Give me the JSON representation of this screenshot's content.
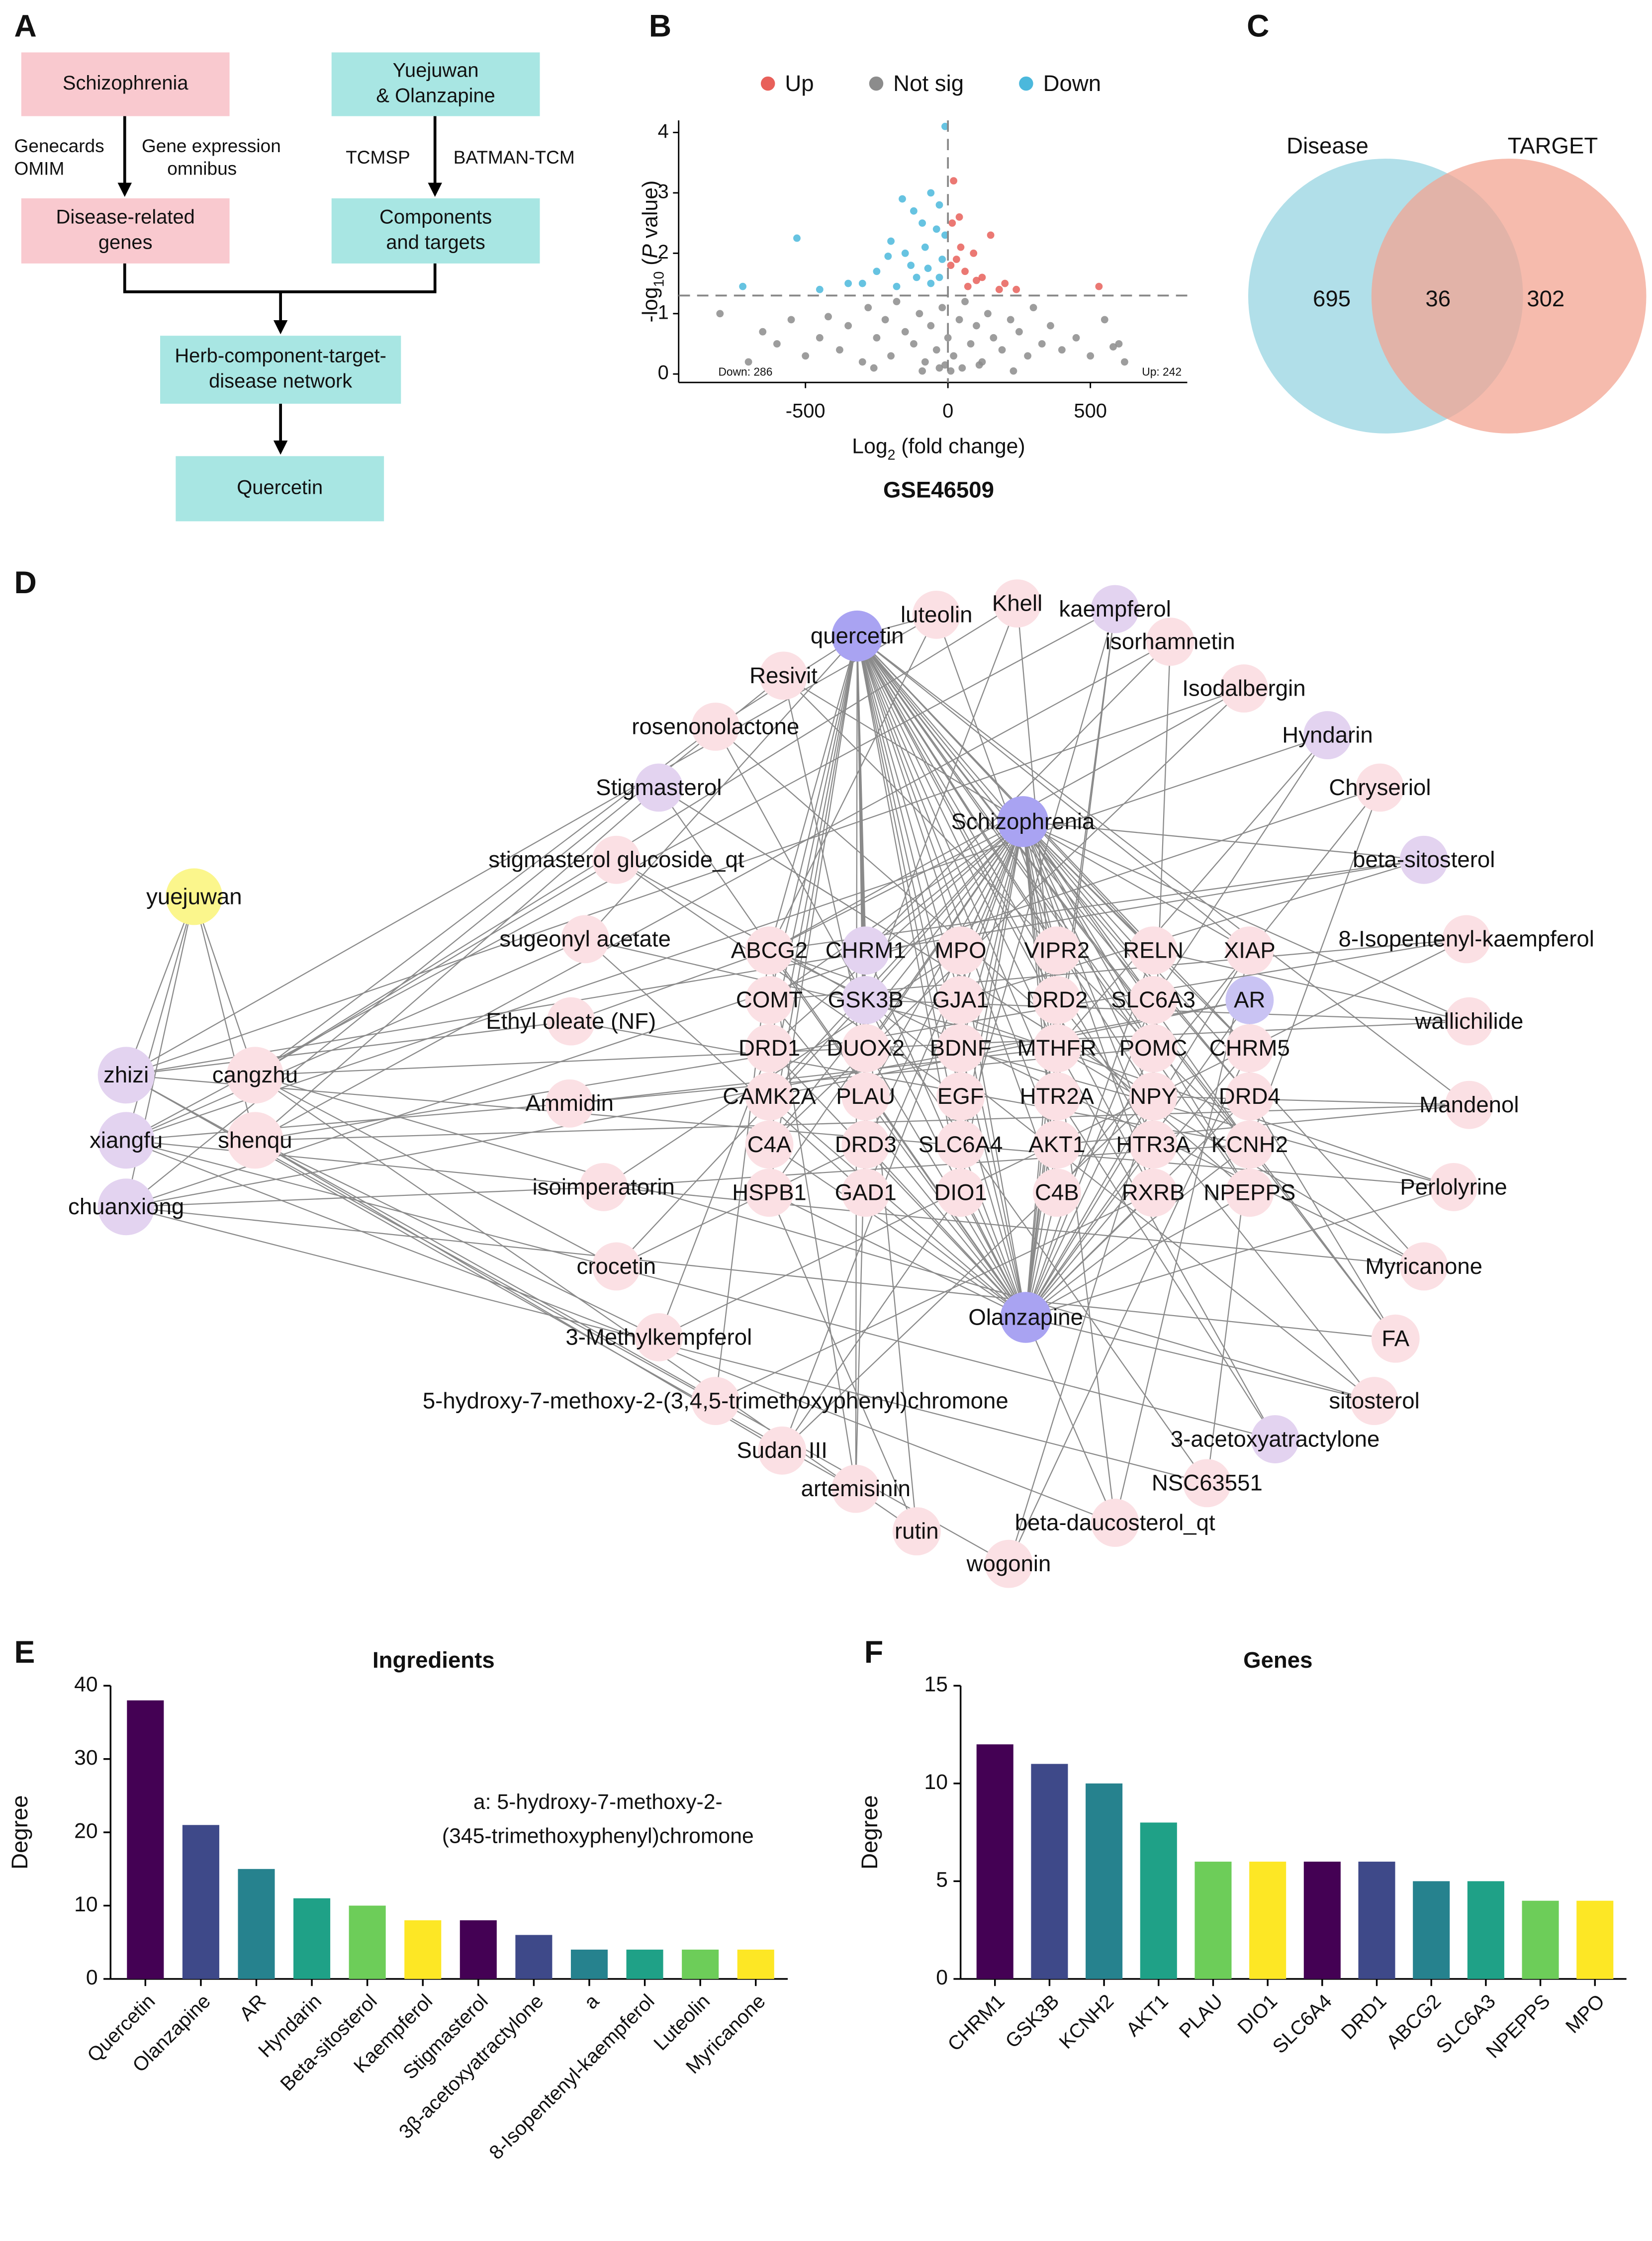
{
  "panel_labels": [
    "A",
    "B",
    "C",
    "D",
    "E",
    "F"
  ],
  "flowchart": {
    "nodes": [
      {
        "lines": [
          "Schizophrenia"
        ],
        "color": "#f9c9cf"
      },
      {
        "lines": [
          "Yuejuwan",
          "& Olanzapine"
        ],
        "color": "#a8e6e3"
      },
      {
        "lines": [
          "Disease-related",
          "genes"
        ],
        "color": "#f9c9cf"
      },
      {
        "lines": [
          "Components",
          "and targets"
        ],
        "color": "#a8e6e3"
      },
      {
        "lines": [
          "Herb-component-target-",
          "disease network"
        ],
        "color": "#a8e6e3"
      },
      {
        "lines": [
          "Quercetin"
        ],
        "color": "#a8e6e3"
      }
    ],
    "edge_labels": [
      "Genecards",
      "OMIM",
      "Gene expression",
      "omnibus",
      "TCMSP",
      "BATMAN-TCM"
    ]
  },
  "network": {
    "nodes": [
      {
        "label": "quercetin",
        "color": "#a9a3f2"
      },
      {
        "label": "luteolin",
        "color": "#fbe0e4"
      },
      {
        "label": "Khell",
        "color": "#fbe0e4"
      },
      {
        "label": "kaempferol",
        "color": "#e3d3f0"
      },
      {
        "label": "isorhamnetin",
        "color": "#fbe0e4"
      },
      {
        "label": "Resivit",
        "color": "#fbe0e4"
      },
      {
        "label": "Isodalbergin",
        "color": "#fbe0e4"
      },
      {
        "label": "rosenonolactone",
        "color": "#fbe0e4"
      },
      {
        "label": "Hyndarin",
        "color": "#e3d3f0"
      },
      {
        "label": "Stigmasterol",
        "color": "#e3d3f0"
      },
      {
        "label": "Chryseriol",
        "color": "#fbe0e4"
      },
      {
        "label": "Schizophrenia",
        "color": "#a9a3f2"
      },
      {
        "label": "beta-sitosterol",
        "color": "#e3d3f0"
      },
      {
        "label": "yuejuwan",
        "color": "#fbf68c"
      },
      {
        "label": "stigmasterol glucoside_qt",
        "color": "#fbe0e4"
      },
      {
        "label": "sugeonyl acetate",
        "color": "#fbe0e4"
      },
      {
        "label": "8-Isopentenyl-kaempferol",
        "color": "#fbe0e4"
      },
      {
        "label": "ABCG2",
        "color": "#fbe0e4"
      },
      {
        "label": "CHRM1",
        "color": "#e3d3f0"
      },
      {
        "label": "MPO",
        "color": "#fbe0e4"
      },
      {
        "label": "VIPR2",
        "color": "#fbe0e4"
      },
      {
        "label": "RELN",
        "color": "#fbe0e4"
      },
      {
        "label": "XIAP",
        "color": "#fbe0e4"
      },
      {
        "label": "COMT",
        "color": "#fbe0e4"
      },
      {
        "label": "GSK3B",
        "color": "#e3d3f0"
      },
      {
        "label": "GJA1",
        "color": "#fbe0e4"
      },
      {
        "label": "DRD2",
        "color": "#fbe0e4"
      },
      {
        "label": "SLC6A3",
        "color": "#fbe0e4"
      },
      {
        "label": "AR",
        "color": "#c9c3f3"
      },
      {
        "label": "Ethyl oleate (NF)",
        "color": "#fbe0e4"
      },
      {
        "label": "wallichilide",
        "color": "#fbe0e4"
      },
      {
        "label": "DRD1",
        "color": "#fbe0e4"
      },
      {
        "label": "DUOX2",
        "color": "#fbe0e4"
      },
      {
        "label": "BDNF",
        "color": "#fbe0e4"
      },
      {
        "label": "MTHFR",
        "color": "#fbe0e4"
      },
      {
        "label": "POMC",
        "color": "#fbe0e4"
      },
      {
        "label": "CHRM5",
        "color": "#fbe0e4"
      },
      {
        "label": "zhizi",
        "color": "#e3d3f0"
      },
      {
        "label": "cangzhu",
        "color": "#fbe0e4"
      },
      {
        "label": "Ammidin",
        "color": "#fbe0e4"
      },
      {
        "label": "CAMK2A",
        "color": "#fbe0e4"
      },
      {
        "label": "PLAU",
        "color": "#fbe0e4"
      },
      {
        "label": "EGF",
        "color": "#fbe0e4"
      },
      {
        "label": "HTR2A",
        "color": "#fbe0e4"
      },
      {
        "label": "NPY",
        "color": "#fbe0e4"
      },
      {
        "label": "DRD4",
        "color": "#fbe0e4"
      },
      {
        "label": "Mandenol",
        "color": "#fbe0e4"
      },
      {
        "label": "xiangfu",
        "color": "#e3d3f0"
      },
      {
        "label": "shenqu",
        "color": "#fbe0e4"
      },
      {
        "label": "C4A",
        "color": "#fbe0e4"
      },
      {
        "label": "DRD3",
        "color": "#fbe0e4"
      },
      {
        "label": "SLC6A4",
        "color": "#fbe0e4"
      },
      {
        "label": "AKT1",
        "color": "#fbe0e4"
      },
      {
        "label": "HTR3A",
        "color": "#fbe0e4"
      },
      {
        "label": "KCNH2",
        "color": "#fbe0e4"
      },
      {
        "label": "isoimperatorin",
        "color": "#fbe0e4"
      },
      {
        "label": "HSPB1",
        "color": "#fbe0e4"
      },
      {
        "label": "GAD1",
        "color": "#fbe0e4"
      },
      {
        "label": "DIO1",
        "color": "#fbe0e4"
      },
      {
        "label": "C4B",
        "color": "#fbe0e4"
      },
      {
        "label": "RXRB",
        "color": "#fbe0e4"
      },
      {
        "label": "NPEPPS",
        "color": "#fbe0e4"
      },
      {
        "label": "Perlolyrine",
        "color": "#fbe0e4"
      },
      {
        "label": "chuanxiong",
        "color": "#e3d3f0"
      },
      {
        "label": "crocetin",
        "color": "#fbe0e4"
      },
      {
        "label": "Myricanone",
        "color": "#fbe0e4"
      },
      {
        "label": "Olanzapine",
        "color": "#a9a3f2"
      },
      {
        "label": "3-Methylkempferol",
        "color": "#fbe0e4"
      },
      {
        "label": "FA",
        "color": "#fbe0e4"
      },
      {
        "label": "5-hydroxy-7-methoxy-2-(3,4,5-trimethoxyphenyl)chromone",
        "color": "#fbe0e4"
      },
      {
        "label": "sitosterol",
        "color": "#fbe0e4"
      },
      {
        "label": "3-acetoxyatractylone",
        "color": "#e3d3f0"
      },
      {
        "label": "Sudan III",
        "color": "#fbe0e4"
      },
      {
        "label": "NSC63551",
        "color": "#fbe0e4"
      },
      {
        "label": "artemisinin",
        "color": "#fbe0e4"
      },
      {
        "label": "rutin",
        "color": "#fbe0e4"
      },
      {
        "label": "beta-daucosterol_qt",
        "color": "#fbe0e4"
      },
      {
        "label": "wogonin",
        "color": "#fbe0e4"
      }
    ]
  },
  "chart_data": [
    {
      "type": "scatter",
      "subtitle": "GSE46509",
      "xlabel": [
        "Log",
        "2",
        " (fold change)"
      ],
      "ylabel": [
        "-log",
        "10",
        " (",
        "P",
        " value)"
      ],
      "xlim": [
        -945,
        840
      ],
      "ylim": [
        -0.14,
        4.2
      ],
      "xticks": [
        -500,
        0,
        500
      ],
      "yticks": [
        0,
        1,
        2,
        3,
        4
      ],
      "threshold": 1.3,
      "vline": 0,
      "annotations": [
        "Down: 286",
        "Up: 242"
      ],
      "series": [
        {
          "name": "Up",
          "color": "#e8605a",
          "x": [
            20,
            40,
            150,
            90,
            30,
            60,
            120,
            200,
            10,
            70,
            530,
            180,
            45,
            100,
            15,
            240
          ],
          "values": [
            3.2,
            2.6,
            2.3,
            2.0,
            1.9,
            1.7,
            1.6,
            1.5,
            1.8,
            1.45,
            1.45,
            1.4,
            2.1,
            1.55,
            2.5,
            1.4
          ]
        },
        {
          "name": "Not sig",
          "color": "#8c8c8c",
          "x": [
            -800,
            -650,
            -600,
            -550,
            -500,
            -450,
            -420,
            -380,
            -350,
            -300,
            -280,
            -250,
            -220,
            -200,
            -180,
            -150,
            -120,
            -100,
            -80,
            -60,
            -40,
            -20,
            0,
            20,
            40,
            60,
            80,
            100,
            120,
            140,
            160,
            190,
            220,
            250,
            280,
            300,
            330,
            360,
            400,
            450,
            500,
            550,
            600,
            620,
            -700,
            -30,
            10,
            -10,
            50,
            -90,
            110,
            -260,
            230,
            580
          ],
          "values": [
            1.0,
            0.7,
            0.5,
            0.9,
            0.3,
            0.6,
            0.95,
            0.4,
            0.8,
            0.2,
            1.1,
            0.6,
            0.9,
            0.3,
            1.2,
            0.7,
            0.5,
            1.0,
            0.2,
            0.8,
            0.4,
            1.1,
            0.6,
            0.3,
            0.9,
            1.2,
            0.5,
            0.8,
            0.2,
            1.0,
            0.6,
            0.4,
            0.9,
            0.7,
            0.3,
            1.1,
            0.5,
            0.8,
            0.4,
            0.6,
            0.3,
            0.9,
            0.5,
            0.2,
            0.2,
            0.1,
            0.05,
            0.15,
            0.1,
            0.05,
            0.15,
            0.1,
            0.05,
            0.45
          ]
        },
        {
          "name": "Down",
          "color": "#4bb8dc",
          "x": [
            -10,
            -60,
            -30,
            -120,
            -160,
            -90,
            -40,
            -200,
            -150,
            -80,
            -20,
            -250,
            -110,
            -60,
            -180,
            -300,
            -530,
            -720,
            -450,
            -350,
            -30,
            -130,
            -210,
            -70,
            -10
          ],
          "values": [
            4.1,
            3.0,
            2.8,
            2.7,
            2.9,
            2.5,
            2.4,
            2.2,
            2.0,
            2.1,
            1.9,
            1.7,
            1.6,
            1.5,
            1.45,
            1.5,
            2.25,
            1.45,
            1.4,
            1.5,
            1.6,
            1.8,
            1.95,
            1.75,
            2.3
          ]
        }
      ]
    },
    {
      "type": "venn",
      "sets": [
        {
          "name": "Disease",
          "color": "#a9dce7",
          "label_color": "#35b6cc",
          "value": 695
        },
        {
          "name": "TARGET",
          "color": "#f3a492",
          "label_color": "#e8704a",
          "value": 302
        }
      ],
      "overlap": 36
    },
    {
      "type": "bar",
      "title": "Ingredients",
      "ylabel": "Degree",
      "categories": [
        "Quercetin",
        "Olanzapine",
        "AR",
        "Hyndarin",
        "Beta-sitosterol",
        "Kaempferol",
        "Stigmasterol",
        "3β-acetoxyatractylone",
        "a",
        "8-Isopentenyl-kaempferol",
        "Luteolin",
        "Myricanone"
      ],
      "values": [
        38,
        21,
        15,
        11,
        10,
        8,
        8,
        6,
        4,
        4,
        4,
        4
      ],
      "colors": [
        "#440154",
        "#3e4989",
        "#26828e",
        "#1fa187",
        "#6dcd59",
        "#fde725",
        "#440154",
        "#3e4989",
        "#26828e",
        "#1fa187",
        "#6dcd59",
        "#fde725"
      ],
      "ylim": [
        0,
        40
      ],
      "yticks": [
        0,
        10,
        20,
        30,
        40
      ],
      "annotation": [
        "a: 5-hydroxy-7-methoxy-2-",
        "(345-trimethoxyphenyl)chromone"
      ]
    },
    {
      "type": "bar",
      "title": "Genes",
      "ylabel": "Degree",
      "categories": [
        "CHRM1",
        "GSK3B",
        "KCNH2",
        "AKT1",
        "PLAU",
        "DIO1",
        "SLC6A4",
        "DRD1",
        "ABCG2",
        "SLC6A3",
        "NPEPPS",
        "MPO"
      ],
      "values": [
        12,
        11,
        10,
        8,
        6,
        6,
        6,
        6,
        5,
        5,
        4,
        4
      ],
      "colors": [
        "#440154",
        "#3e4989",
        "#26828e",
        "#1fa187",
        "#6dcd59",
        "#fde725",
        "#440154",
        "#3e4989",
        "#26828e",
        "#1fa187",
        "#6dcd59",
        "#fde725"
      ],
      "ylim": [
        0,
        15
      ],
      "yticks": [
        0,
        5,
        10,
        15
      ]
    }
  ]
}
